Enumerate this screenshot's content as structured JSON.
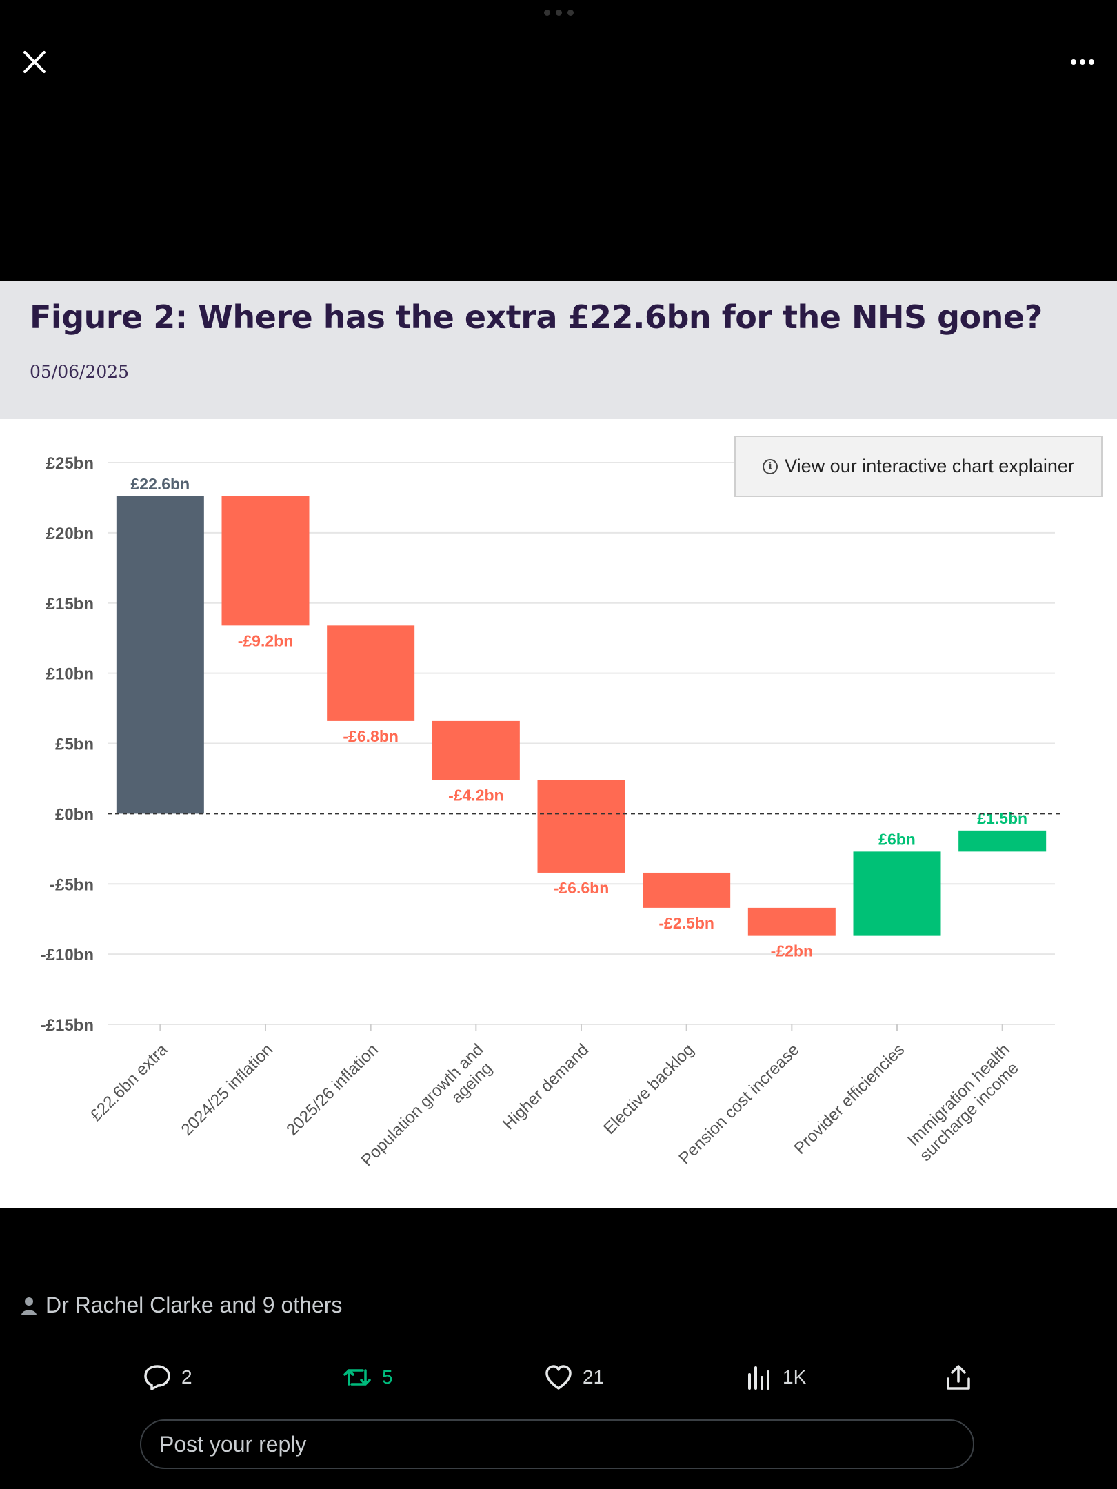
{
  "figure": {
    "title": "Figure 2: Where has the extra £22.6bn for the NHS gone?",
    "date": "05/06/2025",
    "explainer_button": "View our interactive chart explainer"
  },
  "chart_data": {
    "type": "bar",
    "subtype": "waterfall",
    "categories": [
      "£22.6bn extra",
      "2024/25 inflation",
      "2025/26 inflation",
      "Population growth and ageing",
      "Higher demand",
      "Elective backlog",
      "Pension cost increase",
      "Provider efficiencies",
      "Immigration health surcharge income"
    ],
    "category_lines": [
      [
        "£22.6bn extra"
      ],
      [
        "2024/25 inflation"
      ],
      [
        "2025/26 inflation"
      ],
      [
        "Population growth and",
        "ageing"
      ],
      [
        "Higher demand"
      ],
      [
        "Elective backlog"
      ],
      [
        "Pension cost increase"
      ],
      [
        "Provider efficiencies"
      ],
      [
        "Immigration health",
        "surcharge income"
      ]
    ],
    "values": [
      22.6,
      -9.2,
      -6.8,
      -4.2,
      -6.6,
      -2.5,
      -2,
      6,
      1.5
    ],
    "data_labels": [
      "£22.6bn",
      "-£9.2bn",
      "-£6.8bn",
      "-£4.2bn",
      "-£6.6bn",
      "-£2.5bn",
      "-£2bn",
      "£6bn",
      "£1.5bn"
    ],
    "bar_types": [
      "total",
      "decrease",
      "decrease",
      "decrease",
      "decrease",
      "decrease",
      "decrease",
      "increase",
      "increase"
    ],
    "y_ticks": [
      25,
      20,
      15,
      10,
      5,
      0,
      -5,
      -10,
      -15
    ],
    "y_tick_labels": [
      "£25bn",
      "£20bn",
      "£15bn",
      "£10bn",
      "£5bn",
      "£0bn",
      "-£5bn",
      "-£10bn",
      "-£15bn"
    ],
    "ylim": [
      -15,
      25
    ],
    "grid": true,
    "zero_line": "dashed",
    "colors": {
      "total": "#546271",
      "decrease": "#ff6a52",
      "increase": "#00c176"
    }
  },
  "post": {
    "liked_by": "Dr Rachel Clarke and 9 others",
    "replies": "2",
    "reposts": "5",
    "likes": "21",
    "views": "1K",
    "reply_placeholder": "Post your reply"
  },
  "icons": {
    "close": "close-icon",
    "more": "more-icon",
    "person": "person-icon",
    "reply": "reply-icon",
    "repost": "repost-icon",
    "like": "heart-icon",
    "views": "views-icon",
    "share": "share-icon"
  }
}
